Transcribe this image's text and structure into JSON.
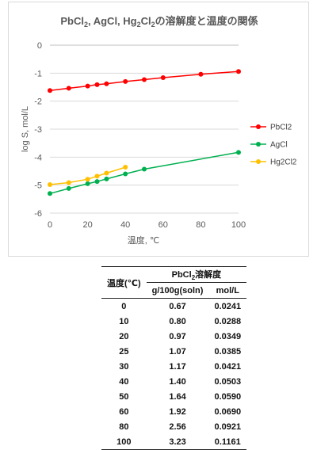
{
  "chart_data": {
    "type": "line",
    "title_parts": [
      "PbCl",
      "2",
      ", AgCl, Hg",
      "2",
      "Cl",
      "2",
      "の溶解度と温度の関係"
    ],
    "xlabel": "温度, ℃",
    "ylabel": "log S, mol/L",
    "xlim": [
      0,
      100
    ],
    "ylim": [
      -6,
      0
    ],
    "xticks": [
      0,
      20,
      40,
      60,
      80,
      100
    ],
    "yticks": [
      0,
      -1,
      -2,
      -3,
      -4,
      -5,
      -6
    ],
    "grid": "horizontal",
    "legend_position": "right",
    "series": [
      {
        "name": "PbCl2",
        "color": "#ff0000",
        "x": [
          0,
          10,
          20,
          25,
          30,
          40,
          50,
          60,
          80,
          100
        ],
        "y": [
          -1.62,
          -1.54,
          -1.46,
          -1.41,
          -1.38,
          -1.3,
          -1.23,
          -1.16,
          -1.04,
          -0.94
        ]
      },
      {
        "name": "AgCl",
        "color": "#00b050",
        "x": [
          0,
          10,
          20,
          25,
          30,
          40,
          50,
          100
        ],
        "y": [
          -5.3,
          -5.12,
          -4.95,
          -4.87,
          -4.78,
          -4.6,
          -4.43,
          -3.83
        ]
      },
      {
        "name": "Hg2Cl2",
        "color": "#ffc000",
        "x": [
          0,
          10,
          20,
          25,
          30,
          40
        ],
        "y": [
          -4.98,
          -4.91,
          -4.79,
          -4.68,
          -4.57,
          -4.36
        ]
      }
    ]
  },
  "table": {
    "col_temp_header": "温度(℃)",
    "group_header_parts": [
      "PbCl",
      "2",
      "溶解度"
    ],
    "sub_headers": [
      "g/100g(soln)",
      "mol/L"
    ],
    "rows": [
      [
        "0",
        "0.67",
        "0.0241"
      ],
      [
        "10",
        "0.80",
        "0.0288"
      ],
      [
        "20",
        "0.97",
        "0.0349"
      ],
      [
        "25",
        "1.07",
        "0.0385"
      ],
      [
        "30",
        "1.17",
        "0.0421"
      ],
      [
        "40",
        "1.40",
        "0.0503"
      ],
      [
        "50",
        "1.64",
        "0.0590"
      ],
      [
        "60",
        "1.92",
        "0.0690"
      ],
      [
        "80",
        "2.56",
        "0.0921"
      ],
      [
        "100",
        "3.23",
        "0.1161"
      ]
    ]
  }
}
